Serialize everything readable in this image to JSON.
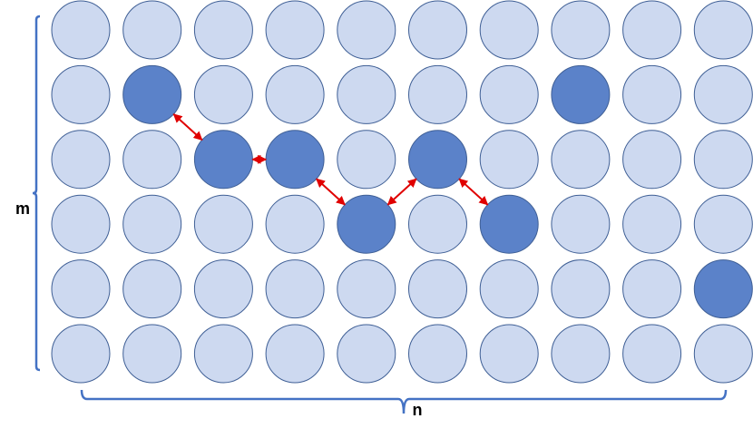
{
  "labels": {
    "m": "m",
    "n": "n"
  }
}
